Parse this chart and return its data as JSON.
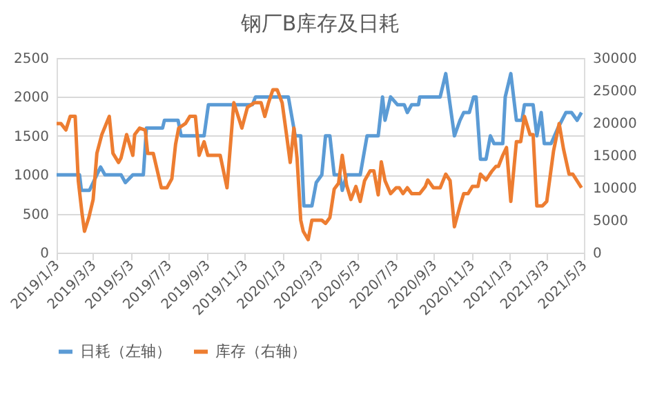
{
  "chart_data": {
    "type": "line",
    "title": "钢厂B库存及日耗",
    "legend": "bottom",
    "grid": "y",
    "marker": "none",
    "line_style": "solid",
    "xlim": [
      "2019-01-03",
      "2021-05-03"
    ],
    "xticks": [
      {
        "value": "2019-01-03",
        "label": "2019/1/3"
      },
      {
        "value": "2019-03-03",
        "label": "2019/3/3"
      },
      {
        "value": "2019-05-03",
        "label": "2019/5/3"
      },
      {
        "value": "2019-07-03",
        "label": "2019/7/3"
      },
      {
        "value": "2019-09-03",
        "label": "2019/9/3"
      },
      {
        "value": "2019-11-03",
        "label": "2019/11/3"
      },
      {
        "value": "2020-01-03",
        "label": "2020/1/3"
      },
      {
        "value": "2020-03-03",
        "label": "2020/3/3"
      },
      {
        "value": "2020-05-03",
        "label": "2020/5/3"
      },
      {
        "value": "2020-07-03",
        "label": "2020/7/3"
      },
      {
        "value": "2020-09-03",
        "label": "2020/9/3"
      },
      {
        "value": "2020-11-03",
        "label": "2020/11/3"
      },
      {
        "value": "2021-01-03",
        "label": "2021/1/3"
      },
      {
        "value": "2021-03-03",
        "label": "2021/3/3"
      },
      {
        "value": "2021-05-03",
        "label": "2021/5/3"
      }
    ],
    "ylim": [
      0,
      2500
    ],
    "yticks": [
      0,
      500,
      1000,
      1500,
      2000,
      2500
    ],
    "y2lim": [
      0,
      30000
    ],
    "y2ticks": [
      0,
      5000,
      10000,
      15000,
      20000,
      25000,
      30000
    ],
    "series": [
      {
        "name": "日耗（左轴）",
        "color": "#5b9bd5",
        "x": [
          "2019-01-03",
          "2019-02-09",
          "2019-02-12",
          "2019-02-25",
          "2019-03-15",
          "2019-03-22",
          "2019-04-17",
          "2019-04-24",
          "2019-05-06",
          "2019-05-23",
          "2019-05-28",
          "2019-06-23",
          "2019-06-26",
          "2019-07-18",
          "2019-07-23",
          "2019-08-29",
          "2019-09-05",
          "2019-11-15",
          "2019-11-20",
          "2020-01-12",
          "2020-01-23",
          "2020-02-01",
          "2020-02-06",
          "2020-02-19",
          "2020-02-26",
          "2020-03-06",
          "2020-03-12",
          "2020-03-19",
          "2020-03-26",
          "2020-04-04",
          "2020-04-08",
          "2020-04-15",
          "2020-05-07",
          "2020-05-18",
          "2020-06-05",
          "2020-06-12",
          "2020-06-16",
          "2020-06-25",
          "2020-07-06",
          "2020-07-17",
          "2020-07-22",
          "2020-07-29",
          "2020-08-09",
          "2020-08-11",
          "2020-09-13",
          "2020-09-22",
          "2020-10-06",
          "2020-10-15",
          "2020-10-21",
          "2020-10-30",
          "2020-11-06",
          "2020-11-10",
          "2020-11-17",
          "2020-11-26",
          "2020-12-03",
          "2020-12-09",
          "2020-12-23",
          "2020-12-27",
          "2021-01-05",
          "2021-01-14",
          "2021-01-23",
          "2021-01-27",
          "2021-02-10",
          "2021-02-16",
          "2021-02-23",
          "2021-02-28",
          "2021-03-11",
          "2021-03-22",
          "2021-04-04",
          "2021-04-13",
          "2021-04-22",
          "2021-04-29"
        ],
        "values": [
          1000,
          1000,
          800,
          800,
          1100,
          1000,
          1000,
          900,
          1000,
          1000,
          1600,
          1600,
          1700,
          1700,
          1500,
          1500,
          1900,
          1900,
          2000,
          2000,
          1500,
          1500,
          600,
          600,
          900,
          1000,
          1500,
          1500,
          1000,
          1000,
          800,
          1000,
          1000,
          1500,
          1500,
          2000,
          1700,
          2000,
          1900,
          1900,
          1800,
          1900,
          1900,
          2000,
          2000,
          2300,
          1500,
          1700,
          1800,
          1800,
          2000,
          2000,
          1200,
          1200,
          1500,
          1400,
          1400,
          2000,
          2300,
          1700,
          1700,
          1900,
          1900,
          1500,
          1800,
          1400,
          1400,
          1600,
          1800,
          1800,
          1700,
          1800
        ]
      },
      {
        "name": "库存（右轴）",
        "color": "#ed7d31",
        "axis": "y2",
        "x": [
          "2019-01-03",
          "2019-01-10",
          "2019-01-18",
          "2019-01-25",
          "2019-02-02",
          "2019-02-07",
          "2019-02-13",
          "2019-02-17",
          "2019-02-24",
          "2019-03-03",
          "2019-03-09",
          "2019-03-17",
          "2019-03-26",
          "2019-03-29",
          "2019-04-04",
          "2019-04-13",
          "2019-04-17",
          "2019-04-26",
          "2019-05-06",
          "2019-05-09",
          "2019-05-17",
          "2019-05-26",
          "2019-05-30",
          "2019-06-08",
          "2019-06-21",
          "2019-06-30",
          "2019-07-08",
          "2019-07-14",
          "2019-07-19",
          "2019-07-30",
          "2019-08-06",
          "2019-08-15",
          "2019-08-21",
          "2019-08-29",
          "2019-09-04",
          "2019-09-24",
          "2019-10-05",
          "2019-10-16",
          "2019-10-29",
          "2019-11-07",
          "2019-11-18",
          "2019-11-29",
          "2019-12-05",
          "2019-12-11",
          "2019-12-18",
          "2019-12-25",
          "2020-01-02",
          "2020-01-09",
          "2020-01-15",
          "2020-01-21",
          "2020-01-26",
          "2020-02-01",
          "2020-02-05",
          "2020-02-13",
          "2020-02-19",
          "2020-03-06",
          "2020-03-12",
          "2020-03-19",
          "2020-03-26",
          "2020-04-02",
          "2020-04-08",
          "2020-04-15",
          "2020-04-22",
          "2020-04-30",
          "2020-05-07",
          "2020-05-14",
          "2020-05-23",
          "2020-05-29",
          "2020-06-05",
          "2020-06-10",
          "2020-06-16",
          "2020-06-25",
          "2020-07-04",
          "2020-07-09",
          "2020-07-15",
          "2020-07-22",
          "2020-07-29",
          "2020-08-11",
          "2020-08-20",
          "2020-08-24",
          "2020-09-02",
          "2020-09-13",
          "2020-09-22",
          "2020-09-29",
          "2020-10-06",
          "2020-10-15",
          "2020-10-21",
          "2020-10-28",
          "2020-11-04",
          "2020-11-13",
          "2020-11-17",
          "2020-11-26",
          "2020-12-05",
          "2020-12-12",
          "2020-12-16",
          "2020-12-23",
          "2020-12-29",
          "2021-01-05",
          "2021-01-14",
          "2021-01-21",
          "2021-01-27",
          "2021-02-05",
          "2021-02-10",
          "2021-02-16",
          "2021-02-25",
          "2021-03-04",
          "2021-03-15",
          "2021-03-24",
          "2021-03-31",
          "2021-04-09",
          "2021-04-15",
          "2021-04-29"
        ],
        "values": [
          19900,
          19900,
          18900,
          21000,
          21000,
          11100,
          6100,
          3300,
          5400,
          8200,
          15300,
          18200,
          20300,
          21000,
          15300,
          13900,
          14600,
          18200,
          15000,
          18200,
          19200,
          18900,
          15300,
          15300,
          10000,
          10000,
          11400,
          16700,
          19200,
          19900,
          21000,
          21000,
          15000,
          17100,
          15000,
          15000,
          10000,
          23100,
          19200,
          22400,
          23100,
          23100,
          21000,
          23100,
          25100,
          25100,
          23100,
          18200,
          13900,
          19200,
          14600,
          5000,
          3300,
          2000,
          5000,
          5000,
          4500,
          5400,
          9800,
          10700,
          15000,
          10400,
          8200,
          10200,
          7900,
          11100,
          12600,
          12600,
          8900,
          14000,
          11100,
          9100,
          10000,
          10000,
          9100,
          10000,
          9100,
          9100,
          10200,
          11200,
          10000,
          10000,
          12100,
          11100,
          4000,
          7200,
          9100,
          9100,
          10200,
          10200,
          12100,
          11200,
          12500,
          13300,
          13300,
          15000,
          16200,
          7900,
          17100,
          17100,
          21000,
          18200,
          18200,
          7200,
          7200,
          7900,
          15700,
          19900,
          16000,
          12100,
          12100,
          10000
        ]
      }
    ]
  }
}
